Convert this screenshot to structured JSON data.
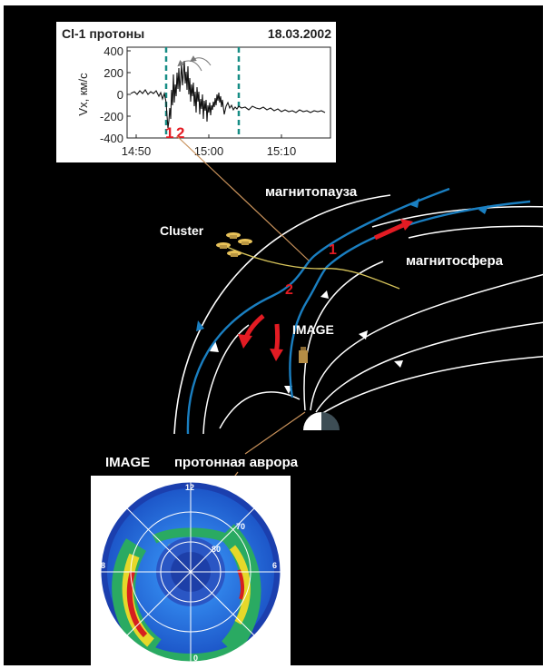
{
  "chart_data": {
    "type": "line",
    "title": "Cl-1  протоны",
    "date": "18.03.2002",
    "ylabel": "Vx, км/с",
    "ylim": [
      -400,
      400
    ],
    "yticks": [
      "400",
      "200",
      "0",
      "-200",
      "-400"
    ],
    "xticks": [
      "14:50",
      "15:00",
      "15:10"
    ],
    "markers": [
      "1",
      "2"
    ]
  },
  "diagram": {
    "magnetopause": "магнитопауза",
    "magnetosphere": "магнитосфера",
    "cluster": "Cluster",
    "image_sat": "IMAGE",
    "label1": "1",
    "label2": "2",
    "image_title": "IMAGE",
    "proton_aurora": "протонная аврора"
  },
  "polar": {
    "labels": {
      "top": "12",
      "left": "18",
      "right": "6",
      "bottom": "0"
    },
    "rings": [
      "60",
      "70",
      "80"
    ]
  },
  "colors": {
    "background": "#000000",
    "field_line_white": "#ffffff",
    "field_line_blue": "#1a7fc1",
    "flow_arrow": "#e31b23",
    "cluster_path": "#d6c35a",
    "pointer": "#c8915a"
  }
}
